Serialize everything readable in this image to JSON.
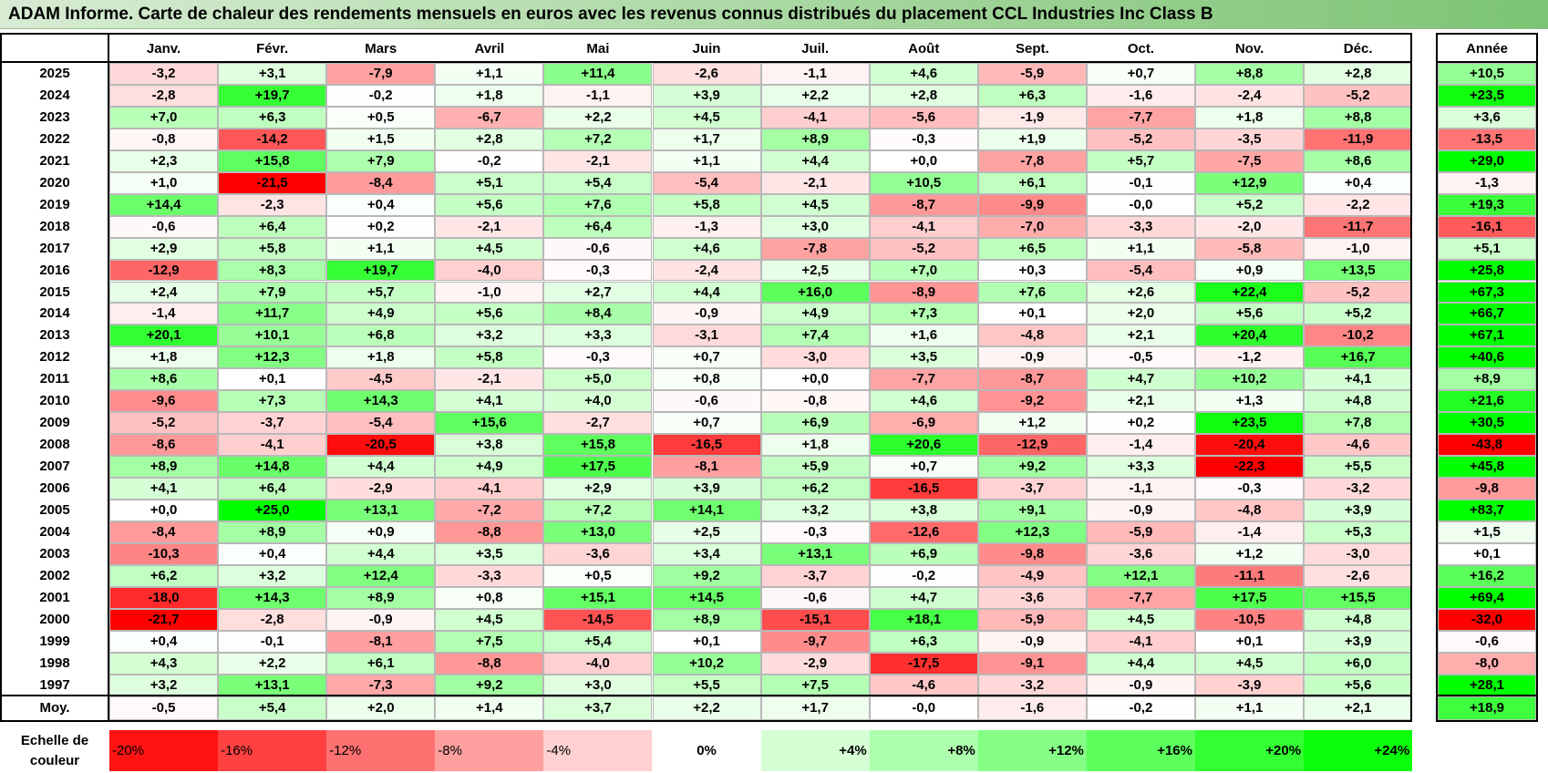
{
  "title": "ADAM Informe. Carte de chaleur des rendements mensuels en euros avec les revenus connus distribués du placement CCL Industries Inc Class B",
  "chart_data": {
    "type": "heatmap",
    "columns": [
      "Janv.",
      "Févr.",
      "Mars",
      "Avril",
      "Mai",
      "Juin",
      "Juil.",
      "Août",
      "Sept.",
      "Oct.",
      "Nov.",
      "Déc."
    ],
    "annual_header": "Année",
    "rows": [
      {
        "year": "2025",
        "values": [
          "-3,2",
          "+3,1",
          "-7,9",
          "+1,1",
          "+11,4",
          "-2,6",
          "-1,1",
          "+4,6",
          "-5,9",
          "+0,7",
          "+8,8",
          "+2,8"
        ],
        "annual": "+10,5"
      },
      {
        "year": "2024",
        "values": [
          "-2,8",
          "+19,7",
          "-0,2",
          "+1,8",
          "-1,1",
          "+3,9",
          "+2,2",
          "+2,8",
          "+6,3",
          "-1,6",
          "-2,4",
          "-5,2"
        ],
        "annual": "+23,5"
      },
      {
        "year": "2023",
        "values": [
          "+7,0",
          "+6,3",
          "+0,5",
          "-6,7",
          "+2,2",
          "+4,5",
          "-4,1",
          "-5,6",
          "-1,9",
          "-7,7",
          "+1,8",
          "+8,8"
        ],
        "annual": "+3,6"
      },
      {
        "year": "2022",
        "values": [
          "-0,8",
          "-14,2",
          "+1,5",
          "+2,8",
          "+7,2",
          "+1,7",
          "+8,9",
          "-0,3",
          "+1,9",
          "-5,2",
          "-3,5",
          "-11,9"
        ],
        "annual": "-13,5"
      },
      {
        "year": "2021",
        "values": [
          "+2,3",
          "+15,8",
          "+7,9",
          "-0,2",
          "-2,1",
          "+1,1",
          "+4,4",
          "+0,0",
          "-7,8",
          "+5,7",
          "-7,5",
          "+8,6"
        ],
        "annual": "+29,0"
      },
      {
        "year": "2020",
        "values": [
          "+1,0",
          "-21,5",
          "-8,4",
          "+5,1",
          "+5,4",
          "-5,4",
          "-2,1",
          "+10,5",
          "+6,1",
          "-0,1",
          "+12,9",
          "+0,4"
        ],
        "annual": "-1,3"
      },
      {
        "year": "2019",
        "values": [
          "+14,4",
          "-2,3",
          "+0,4",
          "+5,6",
          "+7,6",
          "+5,8",
          "+4,5",
          "-8,7",
          "-9,9",
          "-0,0",
          "+5,2",
          "-2,2"
        ],
        "annual": "+19,3"
      },
      {
        "year": "2018",
        "values": [
          "-0,6",
          "+6,4",
          "+0,2",
          "-2,1",
          "+6,4",
          "-1,3",
          "+3,0",
          "-4,1",
          "-7,0",
          "-3,3",
          "-2,0",
          "-11,7"
        ],
        "annual": "-16,1"
      },
      {
        "year": "2017",
        "values": [
          "+2,9",
          "+5,8",
          "+1,1",
          "+4,5",
          "-0,6",
          "+4,6",
          "-7,8",
          "-5,2",
          "+6,5",
          "+1,1",
          "-5,8",
          "-1,0"
        ],
        "annual": "+5,1"
      },
      {
        "year": "2016",
        "values": [
          "-12,9",
          "+8,3",
          "+19,7",
          "-4,0",
          "-0,3",
          "-2,4",
          "+2,5",
          "+7,0",
          "+0,3",
          "-5,4",
          "+0,9",
          "+13,5"
        ],
        "annual": "+25,8"
      },
      {
        "year": "2015",
        "values": [
          "+2,4",
          "+7,9",
          "+5,7",
          "-1,0",
          "+2,7",
          "+4,4",
          "+16,0",
          "-8,9",
          "+7,6",
          "+2,6",
          "+22,4",
          "-5,2"
        ],
        "annual": "+67,3"
      },
      {
        "year": "2014",
        "values": [
          "-1,4",
          "+11,7",
          "+4,9",
          "+5,6",
          "+8,4",
          "-0,9",
          "+4,9",
          "+7,3",
          "+0,1",
          "+2,0",
          "+5,6",
          "+5,2"
        ],
        "annual": "+66,7"
      },
      {
        "year": "2013",
        "values": [
          "+20,1",
          "+10,1",
          "+6,8",
          "+3,2",
          "+3,3",
          "-3,1",
          "+7,4",
          "+1,6",
          "-4,8",
          "+2,1",
          "+20,4",
          "-10,2"
        ],
        "annual": "+67,1"
      },
      {
        "year": "2012",
        "values": [
          "+1,8",
          "+12,3",
          "+1,8",
          "+5,8",
          "-0,3",
          "+0,7",
          "-3,0",
          "+3,5",
          "-0,9",
          "-0,5",
          "-1,2",
          "+16,7"
        ],
        "annual": "+40,6"
      },
      {
        "year": "2011",
        "values": [
          "+8,6",
          "+0,1",
          "-4,5",
          "-2,1",
          "+5,0",
          "+0,8",
          "+0,0",
          "-7,7",
          "-8,7",
          "+4,7",
          "+10,2",
          "+4,1"
        ],
        "annual": "+8,9"
      },
      {
        "year": "2010",
        "values": [
          "-9,6",
          "+7,3",
          "+14,3",
          "+4,1",
          "+4,0",
          "-0,6",
          "-0,8",
          "+4,6",
          "-9,2",
          "+2,1",
          "+1,3",
          "+4,8"
        ],
        "annual": "+21,6"
      },
      {
        "year": "2009",
        "values": [
          "-5,2",
          "-3,7",
          "-5,4",
          "+15,6",
          "-2,7",
          "+0,7",
          "+6,9",
          "-6,9",
          "+1,2",
          "+0,2",
          "+23,5",
          "+7,8"
        ],
        "annual": "+30,5"
      },
      {
        "year": "2008",
        "values": [
          "-8,6",
          "-4,1",
          "-20,5",
          "+3,8",
          "+15,8",
          "-16,5",
          "+1,8",
          "+20,6",
          "-12,9",
          "-1,4",
          "-20,4",
          "-4,6"
        ],
        "annual": "-43,8"
      },
      {
        "year": "2007",
        "values": [
          "+8,9",
          "+14,8",
          "+4,4",
          "+4,9",
          "+17,5",
          "-8,1",
          "+5,9",
          "+0,7",
          "+9,2",
          "+3,3",
          "-22,3",
          "+5,5"
        ],
        "annual": "+45,8"
      },
      {
        "year": "2006",
        "values": [
          "+4,1",
          "+6,4",
          "-2,9",
          "-4,1",
          "+2,9",
          "+3,9",
          "+6,2",
          "-16,5",
          "-3,7",
          "-1,1",
          "-0,3",
          "-3,2"
        ],
        "annual": "-9,8"
      },
      {
        "year": "2005",
        "values": [
          "+0,0",
          "+25,0",
          "+13,1",
          "-7,2",
          "+7,2",
          "+14,1",
          "+3,2",
          "+3,8",
          "+9,1",
          "-0,9",
          "-4,8",
          "+3,9"
        ],
        "annual": "+83,7"
      },
      {
        "year": "2004",
        "values": [
          "-8,4",
          "+8,9",
          "+0,9",
          "-8,8",
          "+13,0",
          "+2,5",
          "-0,3",
          "-12,6",
          "+12,3",
          "-5,9",
          "-1,4",
          "+5,3"
        ],
        "annual": "+1,5"
      },
      {
        "year": "2003",
        "values": [
          "-10,3",
          "+0,4",
          "+4,4",
          "+3,5",
          "-3,6",
          "+3,4",
          "+13,1",
          "+6,9",
          "-9,8",
          "-3,6",
          "+1,2",
          "-3,0"
        ],
        "annual": "+0,1"
      },
      {
        "year": "2002",
        "values": [
          "+6,2",
          "+3,2",
          "+12,4",
          "-3,3",
          "+0,5",
          "+9,2",
          "-3,7",
          "-0,2",
          "-4,9",
          "+12,1",
          "-11,1",
          "-2,6"
        ],
        "annual": "+16,2"
      },
      {
        "year": "2001",
        "values": [
          "-18,0",
          "+14,3",
          "+8,9",
          "+0,8",
          "+15,1",
          "+14,5",
          "-0,6",
          "+4,7",
          "-3,6",
          "-7,7",
          "+17,5",
          "+15,5"
        ],
        "annual": "+69,4"
      },
      {
        "year": "2000",
        "values": [
          "-21,7",
          "-2,8",
          "-0,9",
          "+4,5",
          "-14,5",
          "+8,9",
          "-15,1",
          "+18,1",
          "-5,9",
          "+4,5",
          "-10,5",
          "+4,8"
        ],
        "annual": "-32,0"
      },
      {
        "year": "1999",
        "values": [
          "+0,4",
          "-0,1",
          "-8,1",
          "+7,5",
          "+5,4",
          "+0,1",
          "-9,7",
          "+6,3",
          "-0,9",
          "-4,1",
          "+0,1",
          "+3,9"
        ],
        "annual": "-0,6"
      },
      {
        "year": "1998",
        "values": [
          "+4,3",
          "+2,2",
          "+6,1",
          "-8,8",
          "-4,0",
          "+10,2",
          "-2,9",
          "-17,5",
          "-9,1",
          "+4,4",
          "+4,5",
          "+6,0"
        ],
        "annual": "-8,0"
      },
      {
        "year": "1997",
        "values": [
          "+3,2",
          "+13,1",
          "-7,3",
          "+9,2",
          "+3,0",
          "+5,5",
          "+7,5",
          "-4,6",
          "-3,2",
          "-0,9",
          "-3,9",
          "+5,6"
        ],
        "annual": "+28,1"
      }
    ],
    "average": {
      "label": "Moy.",
      "values": [
        "-0,5",
        "+5,4",
        "+2,0",
        "+1,4",
        "+3,7",
        "+2,2",
        "+1,7",
        "-0,0",
        "-1,6",
        "-0,2",
        "+1,1",
        "+2,1"
      ],
      "annual": "+18,9"
    },
    "scale": {
      "label_line1": "Echelle de",
      "label_line2": "couleur",
      "items": [
        "-20%",
        "-16%",
        "-12%",
        "-8%",
        "-4%",
        "0%",
        "+4%",
        "+8%",
        "+12%",
        "+16%",
        "+20%",
        "+24%"
      ]
    },
    "colors": {
      "negative": "#ff0000",
      "neutral": "#ffffff",
      "positive": "#00ff00"
    }
  }
}
